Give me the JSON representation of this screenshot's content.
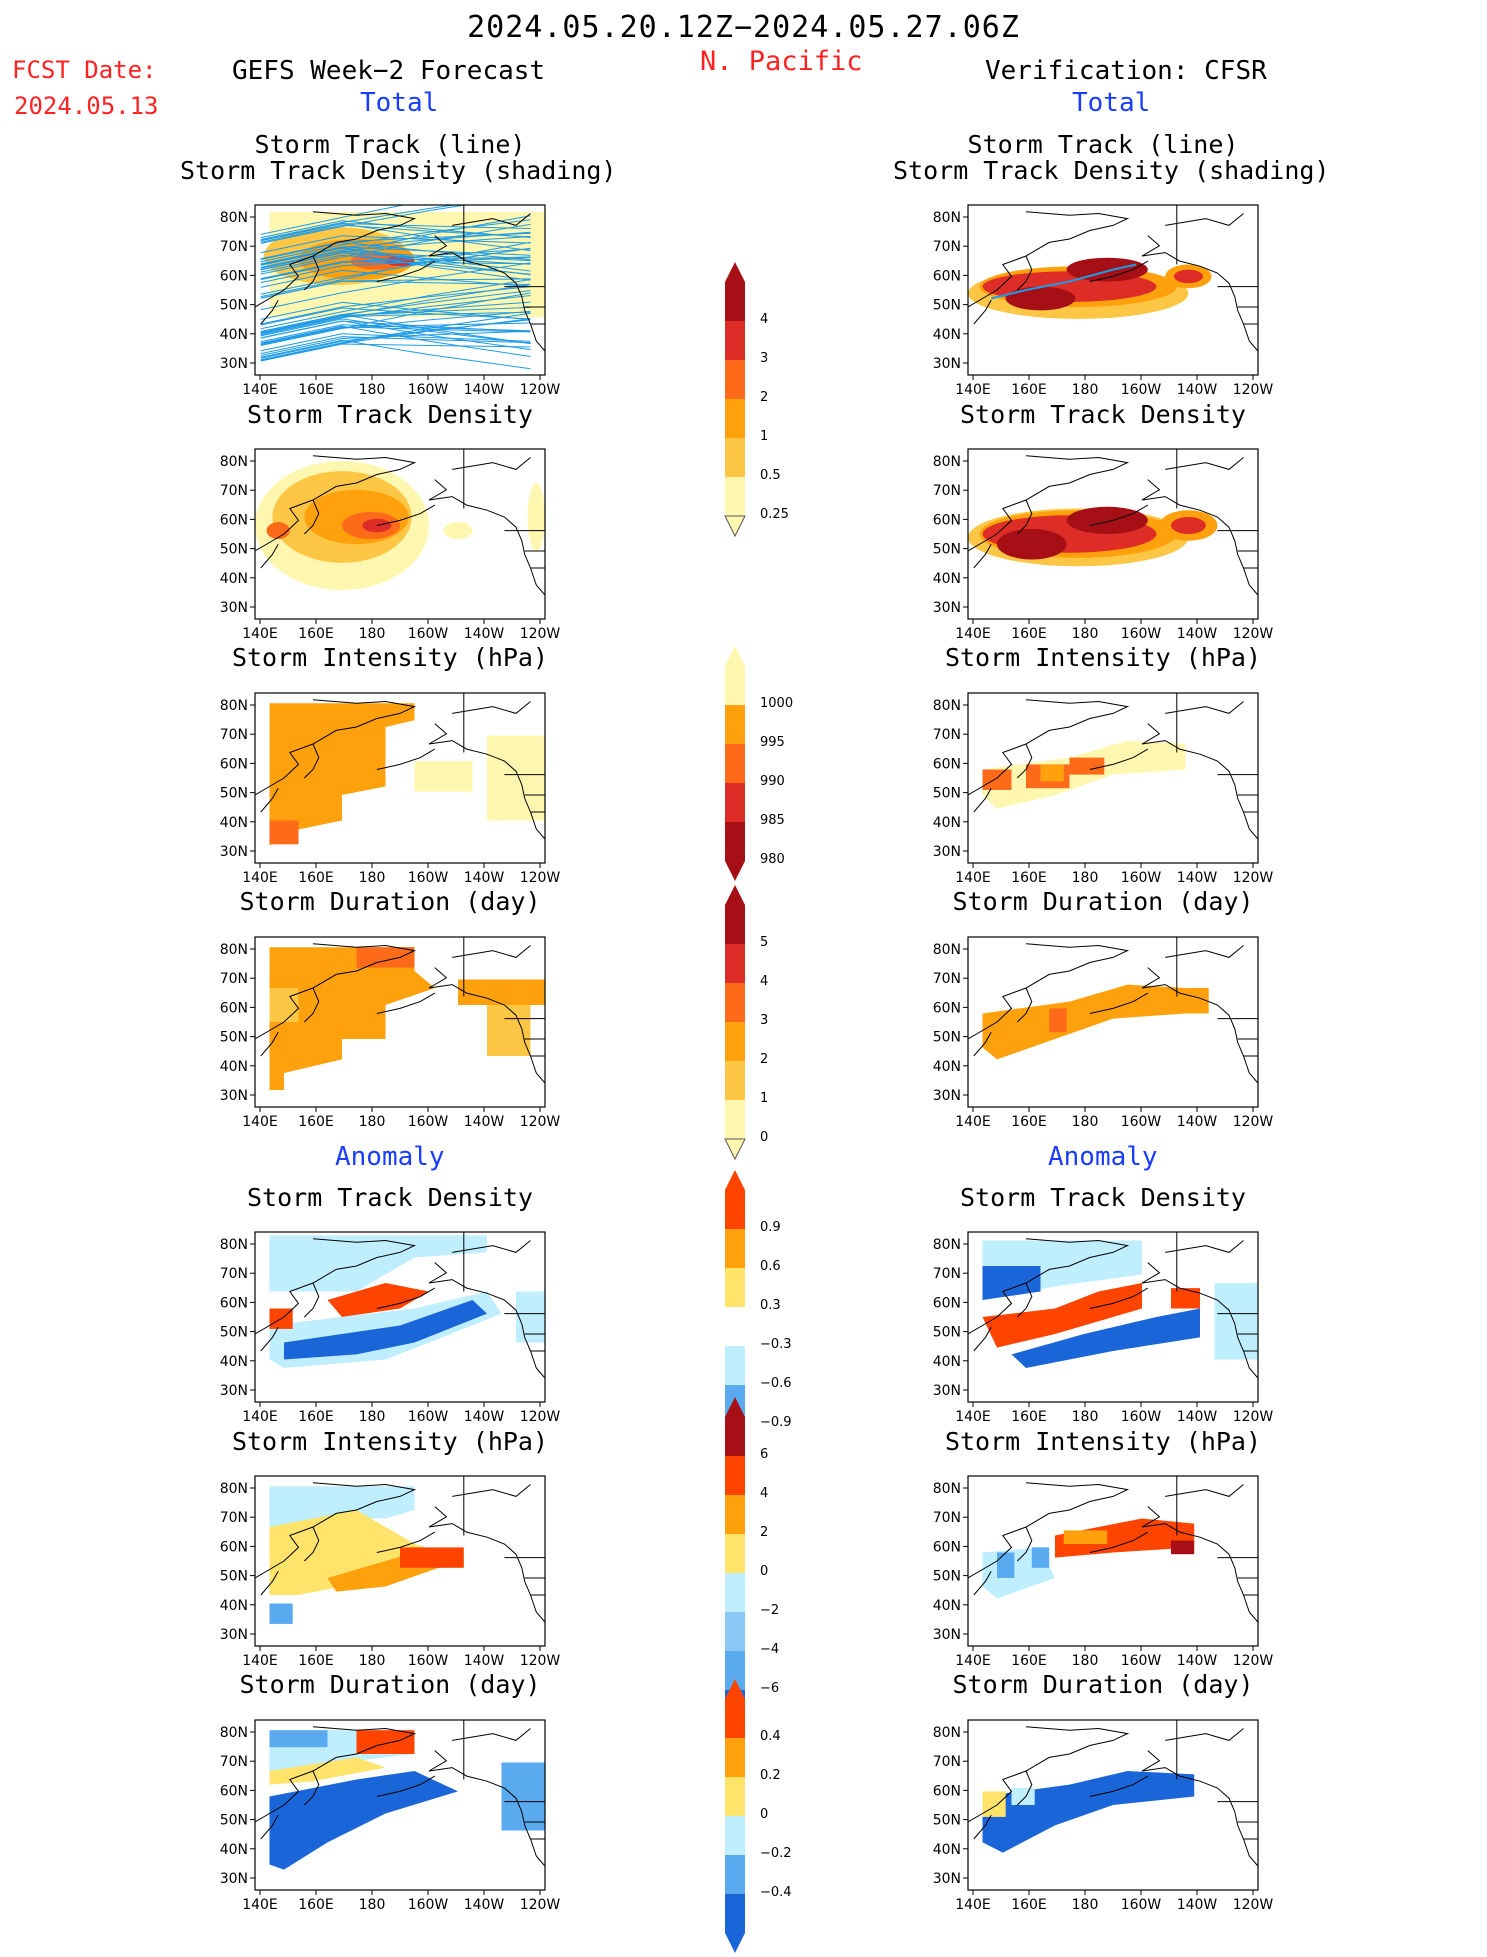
{
  "header": {
    "date_range": "2024.05.20.12Z−2024.05.27.06Z",
    "fcst_label": "FCST Date:",
    "fcst_date": "2024.05.13",
    "region": "N. Pacific",
    "left_title": "GEFS Week−2 Forecast",
    "right_title": "Verification: CFSR",
    "total_label": "Total",
    "anomaly_label": "Anomaly"
  },
  "axes": {
    "x_ticks": [
      "140E",
      "160E",
      "180",
      "160W",
      "140W",
      "120W"
    ],
    "y_ticks": [
      "80N",
      "70N",
      "60N",
      "50N",
      "40N",
      "30N"
    ]
  },
  "panels": {
    "left": {
      "track": [
        "Storm Track (line)",
        "Storm Track Density (shading)"
      ],
      "density": "Storm Track Density",
      "intensity": "Storm Intensity (hPa)",
      "duration": "Storm Duration (day)",
      "anom_density": "Storm Track Density",
      "anom_intensity": "Storm Intensity (hPa)",
      "anom_duration": "Storm Duration (day)"
    },
    "right": {
      "track": [
        "Storm Track (line)",
        "Storm Track Density (shading)"
      ],
      "density": "Storm Track Density",
      "intensity": "Storm Intensity (hPa)",
      "duration": "Storm Duration (day)",
      "anom_density": "Storm Track Density",
      "anom_intensity": "Storm Intensity (hPa)",
      "anom_duration": "Storm Duration (day)"
    }
  },
  "colorbars": {
    "density": {
      "labels": [
        "4",
        "3",
        "2",
        "1",
        "0.5",
        "0.25"
      ],
      "colors": [
        "#a50f15",
        "#de2d26",
        "#fc6a1a",
        "#ffa10d",
        "#fdc644",
        "#fff7b0"
      ]
    },
    "intensity": {
      "labels": [
        "1000",
        "995",
        "990",
        "985",
        "980"
      ],
      "colors": [
        "#fff7b0",
        "#ffa10d",
        "#fc6a1a",
        "#de2d26",
        "#a50f15"
      ]
    },
    "duration": {
      "labels": [
        "5",
        "4",
        "3",
        "2",
        "1",
        "0"
      ],
      "colors": [
        "#a50f15",
        "#de2d26",
        "#fc6a1a",
        "#ffa10d",
        "#fdc644",
        "#fff7b0"
      ]
    },
    "anom_density": {
      "labels": [
        "0.9",
        "0.6",
        "0.3",
        "−0.3",
        "−0.6",
        "−0.9"
      ],
      "colors": [
        "#ff4400",
        "#ffa10d",
        "#ffe36b",
        "#ffffff",
        "#bfeeff",
        "#5aaaf0",
        "#1a66d9"
      ]
    },
    "anom_intensity": {
      "labels": [
        "6",
        "4",
        "2",
        "0",
        "−2",
        "−4",
        "−6"
      ],
      "colors": [
        "#a50f15",
        "#ff4400",
        "#ffa10d",
        "#ffe36b",
        "#bfeeff",
        "#8cc8f5",
        "#5aaaf0",
        "#1a66d9"
      ]
    },
    "anom_duration": {
      "labels": [
        "0.4",
        "0.2",
        "0",
        "−0.2",
        "−0.4"
      ],
      "colors": [
        "#ff4400",
        "#ffa10d",
        "#ffe36b",
        "#bfeeff",
        "#5aaaf0",
        "#1a66d9"
      ]
    }
  }
}
